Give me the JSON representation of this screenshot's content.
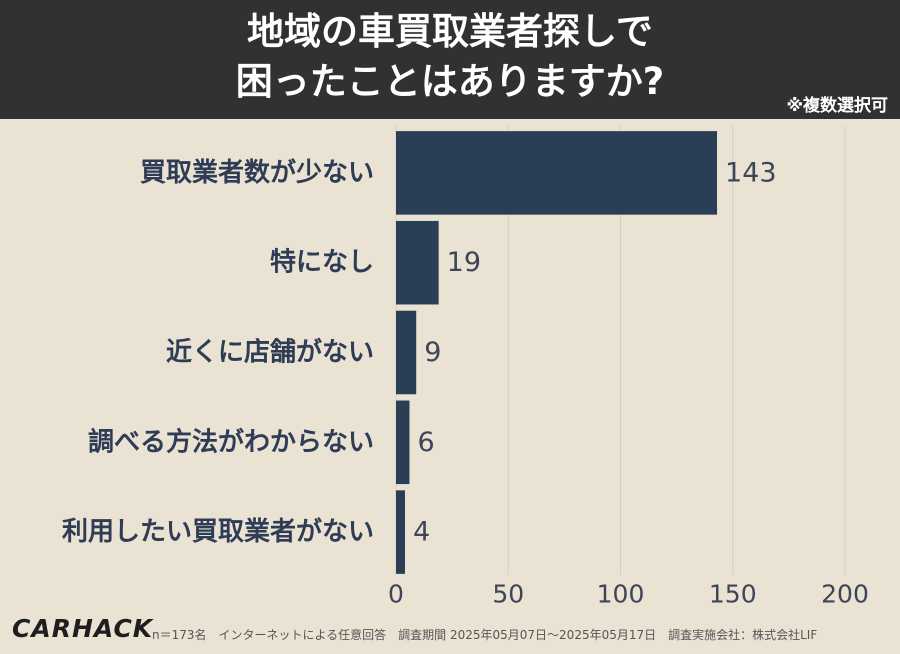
{
  "header": {
    "title_line1": "地域の車買取業者探しで",
    "title_line2": "困ったことはありますか?",
    "note": "※複数選択可"
  },
  "chart_data": {
    "type": "bar",
    "orientation": "horizontal",
    "categories": [
      "買取業者数が少ない",
      "特になし",
      "近くに店舗がない",
      "調べる方法がわからない",
      "利用したい買取業者がない"
    ],
    "values": [
      143,
      19,
      9,
      6,
      4
    ],
    "xlim": [
      0,
      200
    ],
    "xticks": [
      "0",
      "50",
      "100",
      "150",
      "200"
    ],
    "grid": "vertical",
    "colors": {
      "bar": "#2a3e55",
      "label": "#2f3c55",
      "value": "#3d4658",
      "grid": "#d6cdbf"
    }
  },
  "footer": {
    "logo": "CARHACK",
    "text": "n＝173名　インターネットによる任意回答　調査期間 2025年05月07日～2025年05月17日　調査実施会社：株式会社LIF"
  }
}
